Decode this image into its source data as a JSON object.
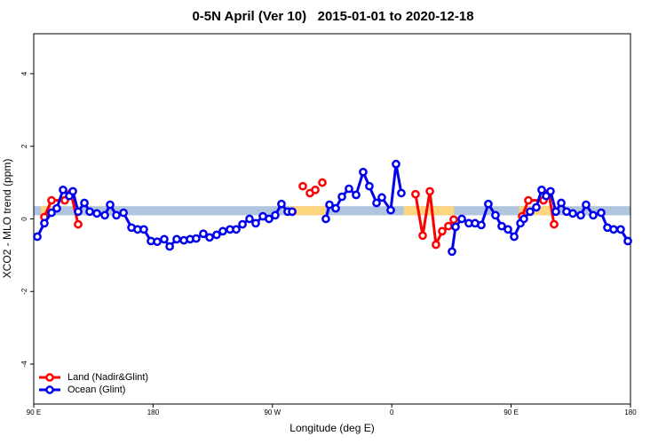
{
  "chart_data": {
    "type": "line",
    "title": "0-5N April (Ver 10)   2015-01-01 to 2020-12-18",
    "x_label": "Longitude (deg E)",
    "y_label": "XCO2 - MLO trend (ppm)",
    "xlim": [
      90,
      540
    ],
    "xticks": [
      {
        "value": 90,
        "label": "90 E"
      },
      180,
      {
        "value": 270,
        "label": "90 W"
      },
      {
        "value": 360,
        "label": "0"
      },
      {
        "value": 450,
        "label": "90 E"
      },
      {
        "value": 540,
        "label": "180"
      }
    ],
    "ylim": [
      -5.1,
      5.1
    ],
    "yticks": [
      -4,
      -2,
      0,
      2,
      4
    ],
    "legend": "bottomleft",
    "band": {
      "ylim": [
        0.1,
        0.35
      ],
      "color": "#b0c4de",
      "highlight_color": "#fdd57e",
      "highlights": [
        [
          95.4,
          106
        ],
        [
          284,
          310
        ],
        [
          369,
          407
        ],
        [
          456,
          480
        ]
      ]
    },
    "series": [
      {
        "name": "Land (Nadir&Glint)",
        "color": "#ff0000",
        "x": [
          98.0,
          103.4,
          113.4,
          118.1,
          123.5,
          null,
          284.9,
          null,
          292.9,
          null,
          298.3,
          null,
          302.3,
          null,
          307.6,
          null,
          377.9,
          383.3,
          388.7,
          393.3,
          398.0,
          402.7,
          406.7,
          null,
          458.3,
          463.0,
          474.4,
          478.4,
          482.4
        ],
        "values": [
          0.05,
          0.51,
          0.51,
          0.71,
          -0.15,
          null,
          0.2,
          null,
          0.9,
          null,
          0.71,
          null,
          0.8,
          null,
          1.0,
          null,
          0.68,
          -0.46,
          0.76,
          -0.71,
          -0.34,
          -0.2,
          -0.02,
          null,
          0.07,
          0.51,
          0.51,
          0.71,
          -0.15
        ]
      },
      {
        "name": "Ocean (Glint)",
        "color": "#0000ee",
        "x": [
          92.7,
          98.0,
          103.4,
          107.4,
          112.1,
          116.8,
          119.5,
          123.5,
          128.2,
          132.2,
          137.6,
          143.6,
          147.6,
          152.3,
          157.7,
          163.7,
          168.3,
          173.0,
          178.4,
          183.1,
          188.4,
          192.5,
          197.8,
          203.2,
          207.9,
          212.5,
          217.9,
          222.6,
          227.9,
          232.6,
          238.0,
          242.7,
          247.4,
          252.7,
          257.4,
          262.8,
          267.4,
          272.1,
          276.8,
          281.5,
          284.9,
          null,
          310.3,
          313.0,
          317.7,
          322.4,
          327.7,
          333.1,
          338.4,
          343.1,
          348.5,
          352.5,
          359.2,
          363.2,
          367.2,
          null,
          405.4,
          408.1,
          412.8,
          418.1,
          422.8,
          427.5,
          432.8,
          438.2,
          442.9,
          447.6,
          452.3,
          457.0,
          459.6,
          464.3,
          469.0,
          473.0,
          476.4,
          479.7,
          483.7,
          487.8,
          491.8,
          496.5,
          502.5,
          506.5,
          511.9,
          517.9,
          522.6,
          527.3,
          532.6,
          538.0
        ],
        "values": [
          -0.49,
          -0.12,
          0.17,
          0.29,
          0.8,
          0.63,
          0.76,
          0.2,
          0.44,
          0.2,
          0.15,
          0.1,
          0.39,
          0.1,
          0.17,
          -0.24,
          -0.29,
          -0.29,
          -0.61,
          -0.63,
          -0.56,
          -0.76,
          -0.56,
          -0.59,
          -0.56,
          -0.54,
          -0.41,
          -0.51,
          -0.44,
          -0.34,
          -0.29,
          -0.29,
          -0.15,
          0.0,
          -0.12,
          0.07,
          0.0,
          0.1,
          0.41,
          0.2,
          0.2,
          null,
          0.0,
          0.39,
          0.29,
          0.61,
          0.83,
          0.66,
          1.29,
          0.9,
          0.44,
          0.59,
          0.24,
          1.51,
          0.71,
          null,
          -0.9,
          -0.22,
          0.0,
          -0.12,
          -0.12,
          -0.17,
          0.41,
          0.1,
          -0.2,
          -0.29,
          -0.49,
          -0.12,
          0.0,
          0.2,
          0.32,
          0.8,
          0.63,
          0.76,
          0.2,
          0.44,
          0.2,
          0.15,
          0.1,
          0.39,
          0.1,
          0.17,
          -0.24,
          -0.29,
          -0.29,
          -0.61
        ]
      }
    ]
  }
}
